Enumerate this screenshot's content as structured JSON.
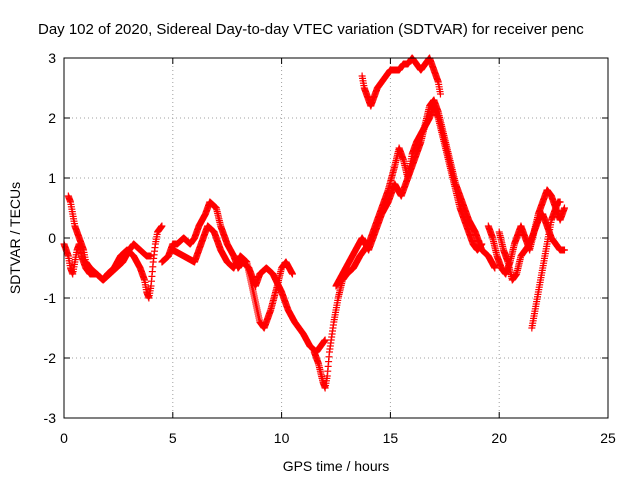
{
  "chart_data": {
    "type": "scatter",
    "title": "Day 102 of 2020, Sidereal Day-to-day VTEC variation (SDTVAR) for receiver penc",
    "xlabel": "GPS time / hours",
    "ylabel": "SDTVAR / TECUs",
    "xlim": [
      0,
      25
    ],
    "ylim": [
      -3,
      3
    ],
    "xticks": [
      "0",
      "5",
      "10",
      "15",
      "20",
      "25"
    ],
    "yticks": [
      "-3",
      "-2",
      "-1",
      "0",
      "1",
      "2",
      "3"
    ],
    "grid": true,
    "marker": "+",
    "color": "#ff0000",
    "series": [
      {
        "x": [
          0.0,
          0.1,
          0.2,
          0.3,
          0.4,
          0.5,
          0.6,
          0.7,
          0.8,
          1.0,
          1.2,
          1.5,
          1.8,
          2.0,
          2.3,
          2.6,
          2.9,
          3.2,
          3.5,
          3.7,
          3.8,
          3.9,
          4.0,
          4.1,
          4.2,
          4.3,
          4.5
        ],
        "y": [
          -0.1,
          -0.2,
          -0.3,
          -0.5,
          -0.6,
          -0.4,
          -0.2,
          -0.1,
          -0.3,
          -0.5,
          -0.6,
          -0.6,
          -0.7,
          -0.6,
          -0.5,
          -0.3,
          -0.2,
          -0.3,
          -0.5,
          -0.7,
          -0.9,
          -1.0,
          -0.8,
          -0.4,
          -0.1,
          0.1,
          0.2
        ]
      },
      {
        "x": [
          0.2,
          0.3,
          0.4,
          0.5,
          0.6,
          0.7,
          0.8,
          0.9,
          1.0,
          1.2,
          1.5,
          1.8,
          2.1,
          2.4,
          2.7,
          3.0,
          3.2,
          3.5,
          3.8,
          4.0
        ],
        "y": [
          0.7,
          0.6,
          0.4,
          0.2,
          0.1,
          0.0,
          -0.1,
          -0.2,
          -0.4,
          -0.5,
          -0.6,
          -0.7,
          -0.6,
          -0.5,
          -0.4,
          -0.2,
          -0.1,
          -0.2,
          -0.3,
          -0.3
        ]
      },
      {
        "x": [
          4.5,
          4.8,
          5.0,
          5.2,
          5.5,
          5.8,
          6.0,
          6.2,
          6.5,
          6.7,
          7.0,
          7.2,
          7.5,
          7.8,
          8.0,
          8.2,
          8.5,
          8.8,
          9.0,
          9.3,
          9.6,
          10.0,
          10.3,
          10.6,
          11.0,
          11.3,
          11.6,
          12.0
        ],
        "y": [
          -0.4,
          -0.3,
          -0.1,
          -0.1,
          0.0,
          -0.1,
          0.0,
          0.2,
          0.4,
          0.6,
          0.5,
          0.2,
          -0.1,
          -0.3,
          -0.5,
          -0.4,
          -0.5,
          -0.8,
          -0.6,
          -0.5,
          -0.6,
          -0.9,
          -1.2,
          -1.4,
          -1.6,
          -1.8,
          -1.9,
          -1.7
        ]
      },
      {
        "x": [
          5.0,
          5.5,
          6.0,
          6.3,
          6.6,
          6.9,
          7.2,
          7.5,
          7.8,
          8.1,
          8.4,
          8.7,
          9.0,
          9.2,
          9.5,
          9.8,
          10.0,
          10.2,
          10.5
        ],
        "y": [
          -0.2,
          -0.3,
          -0.4,
          -0.1,
          0.2,
          0.1,
          -0.2,
          -0.4,
          -0.5,
          -0.3,
          -0.4,
          -0.9,
          -1.4,
          -1.5,
          -1.2,
          -0.8,
          -0.5,
          -0.4,
          -0.6
        ]
      },
      {
        "x": [
          11.5,
          11.7,
          11.9,
          12.0,
          12.1,
          12.2,
          12.4,
          12.6,
          12.8,
          13.0,
          13.3,
          13.6,
          14.0,
          14.3,
          14.6,
          14.9,
          15.2,
          15.4,
          15.6,
          15.8,
          16.0,
          16.2,
          16.5,
          16.8,
          17.0,
          17.2,
          17.4,
          17.6,
          17.8,
          18.0,
          18.2,
          18.4,
          18.6,
          18.8,
          19.0,
          19.2
        ],
        "y": [
          -1.9,
          -2.1,
          -2.4,
          -2.5,
          -2.3,
          -1.9,
          -1.4,
          -1.0,
          -0.7,
          -0.6,
          -0.5,
          -0.3,
          -0.1,
          0.2,
          0.5,
          0.8,
          1.2,
          1.5,
          1.3,
          1.0,
          1.4,
          1.6,
          1.8,
          2.0,
          2.2,
          2.0,
          1.7,
          1.4,
          1.1,
          0.8,
          0.5,
          0.3,
          0.1,
          -0.1,
          -0.2,
          -0.1
        ]
      },
      {
        "x": [
          12.5,
          12.8,
          13.1,
          13.4,
          13.7,
          14.0,
          14.3,
          14.6,
          14.9,
          15.2,
          15.5,
          15.8,
          16.1,
          16.4,
          16.6,
          16.8,
          17.0,
          17.2,
          17.4,
          17.6,
          17.8,
          18.0,
          18.3,
          18.6,
          18.9,
          19.2,
          19.5,
          19.8
        ],
        "y": [
          -0.8,
          -0.6,
          -0.4,
          -0.2,
          0.0,
          -0.2,
          0.1,
          0.4,
          0.6,
          0.9,
          0.7,
          1.0,
          1.3,
          1.6,
          1.9,
          2.2,
          2.3,
          2.1,
          1.8,
          1.5,
          1.2,
          0.9,
          0.6,
          0.3,
          0.1,
          -0.2,
          -0.3,
          -0.5
        ]
      },
      {
        "x": [
          13.7,
          13.8,
          13.9,
          14.0,
          14.1,
          14.2,
          14.3,
          14.4,
          14.6,
          14.8,
          15.0,
          15.2,
          15.4,
          15.6,
          15.8,
          16.0,
          16.2,
          16.4,
          16.6,
          16.8,
          17.0,
          17.2,
          17.3
        ],
        "y": [
          2.7,
          2.5,
          2.4,
          2.3,
          2.2,
          2.3,
          2.4,
          2.5,
          2.6,
          2.7,
          2.8,
          2.8,
          2.8,
          2.9,
          2.9,
          3.0,
          2.9,
          2.8,
          2.9,
          3.0,
          2.8,
          2.6,
          2.4
        ]
      },
      {
        "x": [
          19.5,
          19.7,
          19.9,
          20.1,
          20.3,
          20.5,
          20.7,
          20.9,
          21.0,
          21.2,
          21.4,
          21.6,
          21.8,
          22.0,
          22.2,
          22.4,
          22.6,
          22.8,
          23.0
        ],
        "y": [
          0.2,
          0.0,
          -0.3,
          -0.5,
          -0.6,
          -0.4,
          -0.1,
          0.1,
          0.2,
          0.0,
          -0.2,
          0.1,
          0.4,
          0.6,
          0.8,
          0.7,
          0.5,
          0.3,
          0.5
        ]
      },
      {
        "x": [
          20.0,
          20.2,
          20.4,
          20.6,
          20.8,
          21.0,
          21.2,
          21.4,
          21.6,
          21.8,
          22.0,
          22.2,
          22.4,
          22.6,
          22.8,
          23.0
        ],
        "y": [
          0.1,
          -0.2,
          -0.4,
          -0.7,
          -0.6,
          -0.3,
          -0.2,
          -0.1,
          0.1,
          0.3,
          0.4,
          0.2,
          0.0,
          -0.1,
          -0.2,
          -0.2
        ]
      },
      {
        "x": [
          21.5,
          21.6,
          21.7,
          21.8,
          21.9,
          22.0,
          22.1,
          22.2,
          22.3,
          22.4,
          22.5,
          22.6,
          22.7,
          22.8
        ],
        "y": [
          -1.5,
          -1.3,
          -1.1,
          -0.9,
          -0.7,
          -0.5,
          -0.3,
          -0.1,
          0.1,
          0.3,
          0.4,
          0.5,
          0.6,
          0.6
        ]
      }
    ]
  }
}
